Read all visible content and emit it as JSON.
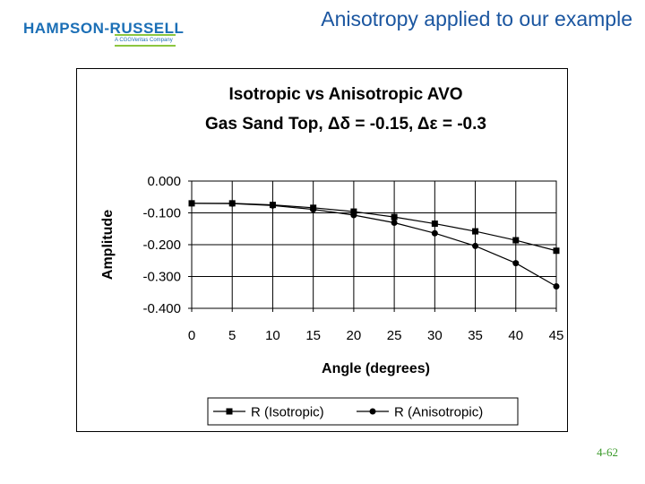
{
  "header": {
    "logo_text": "HAMPSON-RUSSELL",
    "logo_subtext": "A CGGVeritas Company",
    "title": "Anisotropy applied to our example"
  },
  "footer": {
    "page_number": "4-62"
  },
  "colors": {
    "title": "#1b56a0",
    "logo": "#1b6fb6",
    "logo_accent": "#8cc63f",
    "page_number": "#3a9a2a"
  },
  "chart_data": {
    "type": "line",
    "title": "Isotropic vs Anisotropic AVO",
    "subtitle": "Gas Sand Top, Δδ = -0.15, Δε = -0.3",
    "xlabel": "Angle (degrees)",
    "ylabel": "Amplitude",
    "x": [
      0,
      5,
      10,
      15,
      20,
      25,
      30,
      35,
      40,
      45
    ],
    "x_ticks": [
      "0",
      "5",
      "10",
      "15",
      "20",
      "25",
      "30",
      "35",
      "40",
      "45"
    ],
    "xlim": [
      0,
      45
    ],
    "ylim": [
      -0.4,
      0
    ],
    "y_ticks": [
      0,
      -0.1,
      -0.2,
      -0.3,
      -0.4
    ],
    "y_tick_labels": [
      "0.000",
      "-0.100",
      "-0.200",
      "-0.300",
      "-0.400"
    ],
    "grid": true,
    "legend_position": "bottom",
    "series": [
      {
        "name": "R (Isotropic)",
        "marker": "square",
        "values": [
          -0.07,
          -0.07,
          -0.075,
          -0.084,
          -0.096,
          -0.113,
          -0.134,
          -0.158,
          -0.186,
          -0.219
        ]
      },
      {
        "name": "R (Anisotropic)",
        "marker": "circle",
        "values": [
          -0.07,
          -0.071,
          -0.077,
          -0.089,
          -0.107,
          -0.131,
          -0.164,
          -0.204,
          -0.258,
          -0.331
        ]
      }
    ]
  }
}
